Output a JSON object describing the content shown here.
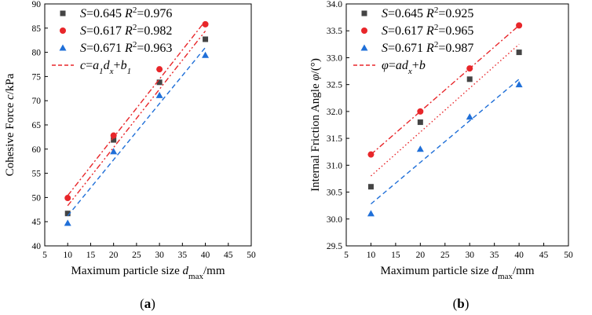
{
  "chart_data": [
    {
      "type": "scatter",
      "panel_label": "a",
      "xlabel_main": "Maximum particle size",
      "xlabel_sym": "d",
      "xlabel_sub": "max",
      "xlabel_unit": "/mm",
      "ylabel_main": "Cohesive Force",
      "ylabel_sym": "c",
      "ylabel_unit": "/kPa",
      "xlim": [
        5,
        50
      ],
      "ylim": [
        40,
        90
      ],
      "xticks": [
        "5",
        "10",
        "15",
        "20",
        "25",
        "30",
        "35",
        "40",
        "45",
        "50"
      ],
      "yticks": [
        "40",
        "45",
        "50",
        "55",
        "60",
        "65",
        "70",
        "75",
        "80",
        "85",
        "90"
      ],
      "fit_legend": {
        "sym": "c",
        "eq": "=",
        "a": "a",
        "a_sub": "1",
        "d": "d",
        "d_sub": "x",
        "plus": "+",
        "b": "b",
        "b_sub": "1"
      },
      "series": [
        {
          "name": "S=0.645 R2=0.976",
          "s": "0.645",
          "r2": "0.976",
          "color": "#444444",
          "marker": "square",
          "line": "dashdotdot",
          "x": [
            10,
            20,
            30,
            40
          ],
          "y": [
            46.7,
            61.9,
            73.8,
            82.7
          ],
          "fit": [
            [
              10,
              48.3
            ],
            [
              40,
              84.4
            ]
          ]
        },
        {
          "name": "S=0.617 R2=0.982",
          "s": "0.617",
          "r2": "0.982",
          "color": "#e8262a",
          "marker": "circle",
          "line": "dashdot",
          "x": [
            10,
            20,
            30,
            40
          ],
          "y": [
            49.9,
            62.8,
            76.5,
            85.8
          ],
          "fit": [
            [
              10,
              50.4
            ],
            [
              40,
              86.5
            ]
          ]
        },
        {
          "name": "S=0.671 R2=0.963",
          "s": "0.671",
          "r2": "0.963",
          "color": "#1f6fd8",
          "marker": "triangle",
          "line": "dashed",
          "x": [
            10,
            20,
            30,
            40
          ],
          "y": [
            44.7,
            59.5,
            71.1,
            79.4
          ],
          "fit": [
            [
              10,
              46.2
            ],
            [
              40,
              81.0
            ]
          ]
        }
      ]
    },
    {
      "type": "scatter",
      "panel_label": "b",
      "xlabel_main": "Maximum particle size",
      "xlabel_sym": "d",
      "xlabel_sub": "max",
      "xlabel_unit": "/mm",
      "ylabel_main": "Internal Friction Angle",
      "ylabel_sym": "φ",
      "ylabel_unit": "/(°)",
      "xlim": [
        5,
        50
      ],
      "ylim": [
        29.5,
        34.0
      ],
      "xticks": [
        "5",
        "10",
        "15",
        "20",
        "25",
        "30",
        "35",
        "40",
        "45",
        "50"
      ],
      "yticks": [
        "29.5",
        "30.0",
        "30.5",
        "31.0",
        "31.5",
        "32.0",
        "32.5",
        "33.0",
        "33.5",
        "34.0"
      ],
      "fit_legend": {
        "sym": "φ",
        "eq": "=",
        "a": "ad",
        "d_sub": "x",
        "plus": "+",
        "b": "b"
      },
      "series": [
        {
          "name": "S=0.645 R2=0.925",
          "s": "0.645",
          "r2": "0.925",
          "color": "#444444",
          "marker": "square",
          "line": "dotted",
          "x": [
            10,
            20,
            30,
            40
          ],
          "y": [
            30.6,
            31.8,
            32.6,
            33.1
          ],
          "fit": [
            [
              10,
              30.8
            ],
            [
              40,
              33.25
            ]
          ]
        },
        {
          "name": "S=0.617 R2=0.965",
          "s": "0.617",
          "r2": "0.965",
          "color": "#e8262a",
          "marker": "circle",
          "line": "dashdot",
          "x": [
            10,
            20,
            30,
            40
          ],
          "y": [
            31.2,
            32.0,
            32.8,
            33.6
          ],
          "fit": [
            [
              10,
              31.2
            ],
            [
              40,
              33.6
            ]
          ]
        },
        {
          "name": "S=0.671 R2=0.987",
          "s": "0.671",
          "r2": "0.987",
          "color": "#1f6fd8",
          "marker": "triangle",
          "line": "dashed",
          "x": [
            10,
            20,
            30,
            40
          ],
          "y": [
            30.1,
            31.3,
            31.9,
            32.5
          ],
          "fit": [
            [
              10,
              30.28
            ],
            [
              40,
              32.6
            ]
          ]
        }
      ]
    }
  ]
}
